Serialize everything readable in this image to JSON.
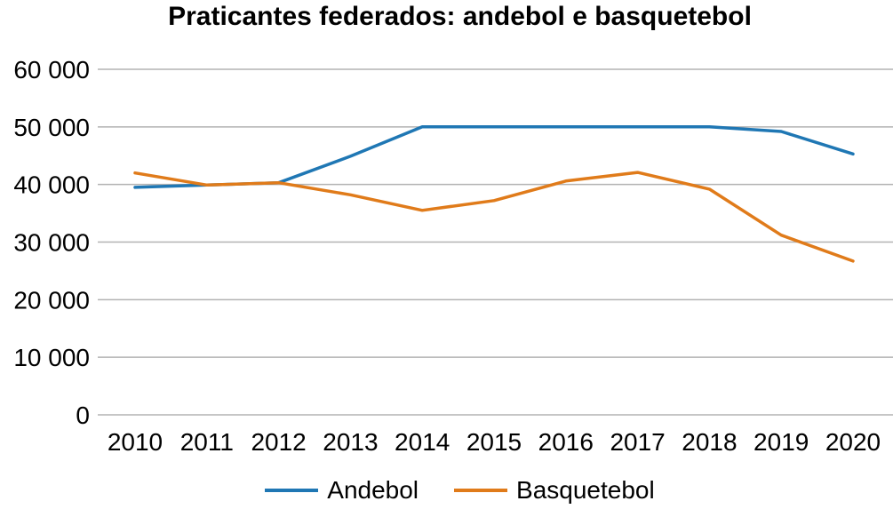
{
  "chart_data": {
    "type": "line",
    "title": "Praticantes federados: andebol e basquetebol",
    "xlabel": "",
    "ylabel": "",
    "categories": [
      "2010",
      "2011",
      "2012",
      "2013",
      "2014",
      "2015",
      "2016",
      "2017",
      "2018",
      "2019",
      "2020"
    ],
    "ylim": [
      0,
      60000
    ],
    "yticks": [
      0,
      10000,
      20000,
      30000,
      40000,
      50000,
      60000
    ],
    "ytick_labels": [
      "0",
      "10 000",
      "20 000",
      "30 000",
      "40 000",
      "50 000",
      "60 000"
    ],
    "grid": true,
    "legend_position": "bottom",
    "series": [
      {
        "name": "Andebol",
        "color": "#1f77b4",
        "values": [
          39500,
          39900,
          40300,
          44900,
          50000,
          50000,
          50000,
          50000,
          50000,
          49200,
          45300
        ]
      },
      {
        "name": "Basquetebol",
        "color": "#e07b1a",
        "values": [
          42000,
          39900,
          40300,
          38200,
          35500,
          37200,
          40600,
          42100,
          39200,
          31200,
          26700
        ]
      }
    ]
  },
  "colors": {
    "gridline": "#b3b3b3",
    "text": "#000000"
  }
}
